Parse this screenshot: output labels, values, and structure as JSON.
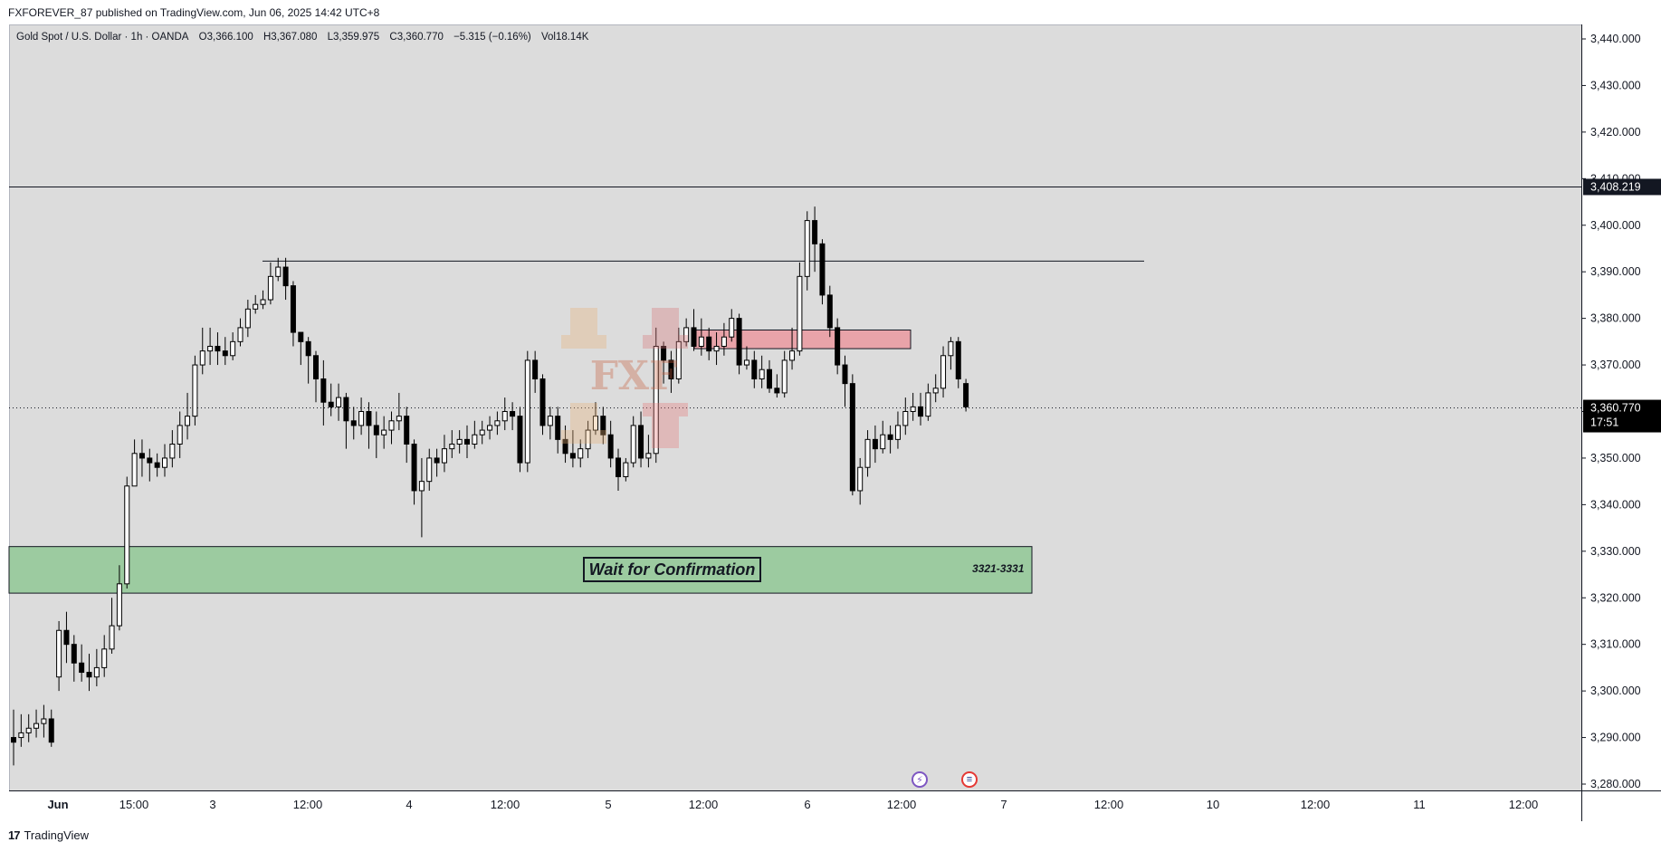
{
  "publish_line": "FXFOREVER_87 published on TradingView.com, Jun 06, 2025 14:42 UTC+8",
  "symbol": {
    "name": "Gold Spot / U.S. Dollar · 1h · OANDA",
    "open": "O3,366.100",
    "high": "H3,367.080",
    "low": "L3,359.975",
    "close": "C3,360.770",
    "change": "−5.315 (−0.16%)",
    "volume": "Vol18.14K"
  },
  "price_scale": {
    "ticks": [
      "3,440.000",
      "3,430.000",
      "3,420.000",
      "3,410.000",
      "3,400.000",
      "3,390.000",
      "3,380.000",
      "3,370.000",
      "3,360.000",
      "3,350.000",
      "3,340.000",
      "3,330.000",
      "3,320.000",
      "3,310.000",
      "3,300.000",
      "3,290.000",
      "3,280.000"
    ],
    "marker_level": "3,408.219",
    "last_price": "3,360.770",
    "countdown": "17:51"
  },
  "time_axis": [
    "Jun",
    "15:00",
    "3",
    "12:00",
    "4",
    "12:00",
    "5",
    "12:00",
    "6",
    "12:00",
    "7",
    "12:00",
    "10",
    "12:00",
    "11",
    "12:00"
  ],
  "annotations": {
    "wait_label": "Wait for Confirmation",
    "zone_label": "3321-3331"
  },
  "watermark_text": "FXF",
  "footer_brand": "TradingView",
  "colors": {
    "background": "#dcdcdc",
    "up_candle": "#ffffff",
    "down_candle": "#000000",
    "demand_zone": "#9ccba0",
    "supply_zone": "#e8a3a9",
    "line": "#131722"
  },
  "chart_data": {
    "type": "candlestick",
    "symbol": "Gold Spot / U.S. Dollar",
    "timeframe": "1h",
    "y_axis": {
      "min": 3280,
      "max": 3440,
      "step": 10
    },
    "candles": [
      [
        3290,
        3289,
        3296,
        3284
      ],
      [
        3290,
        3291,
        3295,
        3288
      ],
      [
        3291,
        3292,
        3295,
        3289
      ],
      [
        3292,
        3293,
        3296,
        3290
      ],
      [
        3293,
        3294,
        3297,
        3290
      ],
      [
        3294,
        3289,
        3296,
        3288
      ],
      [
        3303,
        3313,
        3315,
        3300
      ],
      [
        3313,
        3310,
        3317,
        3306
      ],
      [
        3310,
        3306,
        3312,
        3302
      ],
      [
        3306,
        3304,
        3310,
        3302
      ],
      [
        3304,
        3303,
        3308,
        3300
      ],
      [
        3303,
        3305,
        3309,
        3301
      ],
      [
        3305,
        3309,
        3312,
        3303
      ],
      [
        3309,
        3314,
        3320,
        3308
      ],
      [
        3314,
        3323,
        3327,
        3313
      ],
      [
        3323,
        3344,
        3346,
        3322
      ],
      [
        3344,
        3351,
        3354,
        3344
      ],
      [
        3351,
        3350,
        3354,
        3346
      ],
      [
        3350,
        3349,
        3352,
        3345
      ],
      [
        3349,
        3348,
        3351,
        3346
      ],
      [
        3348,
        3350,
        3353,
        3346
      ],
      [
        3350,
        3353,
        3356,
        3348
      ],
      [
        3353,
        3357,
        3360,
        3350
      ],
      [
        3357,
        3359,
        3364,
        3354
      ],
      [
        3359,
        3370,
        3372,
        3357
      ],
      [
        3370,
        3373,
        3378,
        3368
      ],
      [
        3373,
        3374,
        3378,
        3370
      ],
      [
        3374,
        3373,
        3377,
        3370
      ],
      [
        3373,
        3372,
        3376,
        3370
      ],
      [
        3372,
        3375,
        3377,
        3371
      ],
      [
        3375,
        3378,
        3380,
        3374
      ],
      [
        3378,
        3382,
        3384,
        3376
      ],
      [
        3382,
        3383,
        3385,
        3381
      ],
      [
        3383,
        3384,
        3386,
        3382
      ],
      [
        3384,
        3389,
        3392,
        3383
      ],
      [
        3389,
        3391,
        3393,
        3388
      ],
      [
        3391,
        3387,
        3393,
        3384
      ],
      [
        3387,
        3377,
        3388,
        3374
      ],
      [
        3377,
        3375,
        3377,
        3370
      ],
      [
        3375,
        3372,
        3376,
        3366
      ],
      [
        3372,
        3367,
        3373,
        3362
      ],
      [
        3367,
        3362,
        3371,
        3357
      ],
      [
        3362,
        3361,
        3366,
        3359
      ],
      [
        3361,
        3363,
        3366,
        3358
      ],
      [
        3363,
        3358,
        3364,
        3352
      ],
      [
        3358,
        3357,
        3361,
        3354
      ],
      [
        3357,
        3360,
        3363,
        3355
      ],
      [
        3360,
        3357,
        3362,
        3352
      ],
      [
        3357,
        3355,
        3360,
        3350
      ],
      [
        3355,
        3356,
        3359,
        3352
      ],
      [
        3356,
        3358,
        3360,
        3353
      ],
      [
        3358,
        3359,
        3364,
        3356
      ],
      [
        3359,
        3353,
        3361,
        3349
      ],
      [
        3353,
        3343,
        3354,
        3340
      ],
      [
        3343,
        3345,
        3350,
        3333
      ],
      [
        3345,
        3350,
        3352,
        3343
      ],
      [
        3350,
        3349,
        3352,
        3346
      ],
      [
        3349,
        3352,
        3355,
        3347
      ],
      [
        3352,
        3353,
        3356,
        3350
      ],
      [
        3353,
        3354,
        3356,
        3351
      ],
      [
        3354,
        3353,
        3357,
        3350
      ],
      [
        3353,
        3355,
        3358,
        3352
      ],
      [
        3355,
        3356,
        3358,
        3353
      ],
      [
        3356,
        3357,
        3359,
        3354
      ],
      [
        3357,
        3358,
        3360,
        3355
      ],
      [
        3358,
        3360,
        3363,
        3356
      ],
      [
        3360,
        3359,
        3362,
        3356
      ],
      [
        3359,
        3349,
        3361,
        3347
      ],
      [
        3349,
        3371,
        3373,
        3347
      ],
      [
        3371,
        3367,
        3373,
        3364
      ],
      [
        3367,
        3357,
        3368,
        3355
      ],
      [
        3357,
        3359,
        3361,
        3354
      ],
      [
        3359,
        3354,
        3361,
        3351
      ],
      [
        3354,
        3351,
        3357,
        3349
      ],
      [
        3351,
        3350,
        3356,
        3348
      ],
      [
        3350,
        3352,
        3354,
        3348
      ],
      [
        3352,
        3356,
        3358,
        3350
      ],
      [
        3356,
        3359,
        3362,
        3355
      ],
      [
        3359,
        3355,
        3361,
        3353
      ],
      [
        3355,
        3350,
        3358,
        3348
      ],
      [
        3350,
        3346,
        3352,
        3343
      ],
      [
        3346,
        3349,
        3350,
        3345
      ],
      [
        3349,
        3357,
        3359,
        3348
      ],
      [
        3357,
        3350,
        3360,
        3348
      ],
      [
        3350,
        3351,
        3355,
        3348
      ],
      [
        3351,
        3374,
        3378,
        3349
      ],
      [
        3374,
        3371,
        3375,
        3366
      ],
      [
        3371,
        3367,
        3373,
        3364
      ],
      [
        3367,
        3375,
        3378,
        3366
      ],
      [
        3375,
        3378,
        3380,
        3374
      ],
      [
        3378,
        3374,
        3382,
        3373
      ],
      [
        3374,
        3376,
        3380,
        3372
      ],
      [
        3376,
        3373,
        3378,
        3371
      ],
      [
        3373,
        3374,
        3377,
        3370
      ],
      [
        3374,
        3376,
        3379,
        3372
      ],
      [
        3376,
        3380,
        3382,
        3375
      ],
      [
        3380,
        3370,
        3381,
        3368
      ],
      [
        3370,
        3371,
        3374,
        3369
      ],
      [
        3371,
        3367,
        3373,
        3365
      ],
      [
        3367,
        3369,
        3372,
        3365
      ],
      [
        3369,
        3365,
        3371,
        3364
      ],
      [
        3365,
        3364,
        3368,
        3363
      ],
      [
        3364,
        3371,
        3373,
        3363
      ],
      [
        3371,
        3373,
        3378,
        3369
      ],
      [
        3373,
        3389,
        3392,
        3372
      ],
      [
        3389,
        3401,
        3403,
        3386
      ],
      [
        3401,
        3396,
        3404,
        3390
      ],
      [
        3396,
        3385,
        3397,
        3383
      ],
      [
        3385,
        3378,
        3387,
        3376
      ],
      [
        3378,
        3370,
        3380,
        3368
      ],
      [
        3370,
        3366,
        3372,
        3361
      ],
      [
        3366,
        3343,
        3368,
        3342
      ],
      [
        3343,
        3348,
        3350,
        3340
      ],
      [
        3348,
        3354,
        3356,
        3346
      ],
      [
        3354,
        3352,
        3357,
        3349
      ],
      [
        3352,
        3355,
        3358,
        3351
      ],
      [
        3355,
        3354,
        3357,
        3351
      ],
      [
        3354,
        3357,
        3360,
        3352
      ],
      [
        3357,
        3360,
        3363,
        3355
      ],
      [
        3360,
        3361,
        3364,
        3358
      ],
      [
        3361,
        3359,
        3364,
        3357
      ],
      [
        3359,
        3364,
        3366,
        3358
      ],
      [
        3364,
        3365,
        3368,
        3362
      ],
      [
        3365,
        3372,
        3374,
        3363
      ],
      [
        3372,
        3375,
        3376,
        3369
      ],
      [
        3375,
        3367,
        3376,
        3365
      ],
      [
        3366,
        3361,
        3367,
        3360
      ]
    ],
    "horizontal_levels": [
      3408.219,
      3392.3
    ],
    "zones": [
      {
        "label": "3321-3331",
        "from": 3321,
        "to": 3331,
        "color": "demand"
      },
      {
        "from": 3373.5,
        "to": 3377.5,
        "color": "supply"
      }
    ],
    "last_price": 3360.77
  }
}
